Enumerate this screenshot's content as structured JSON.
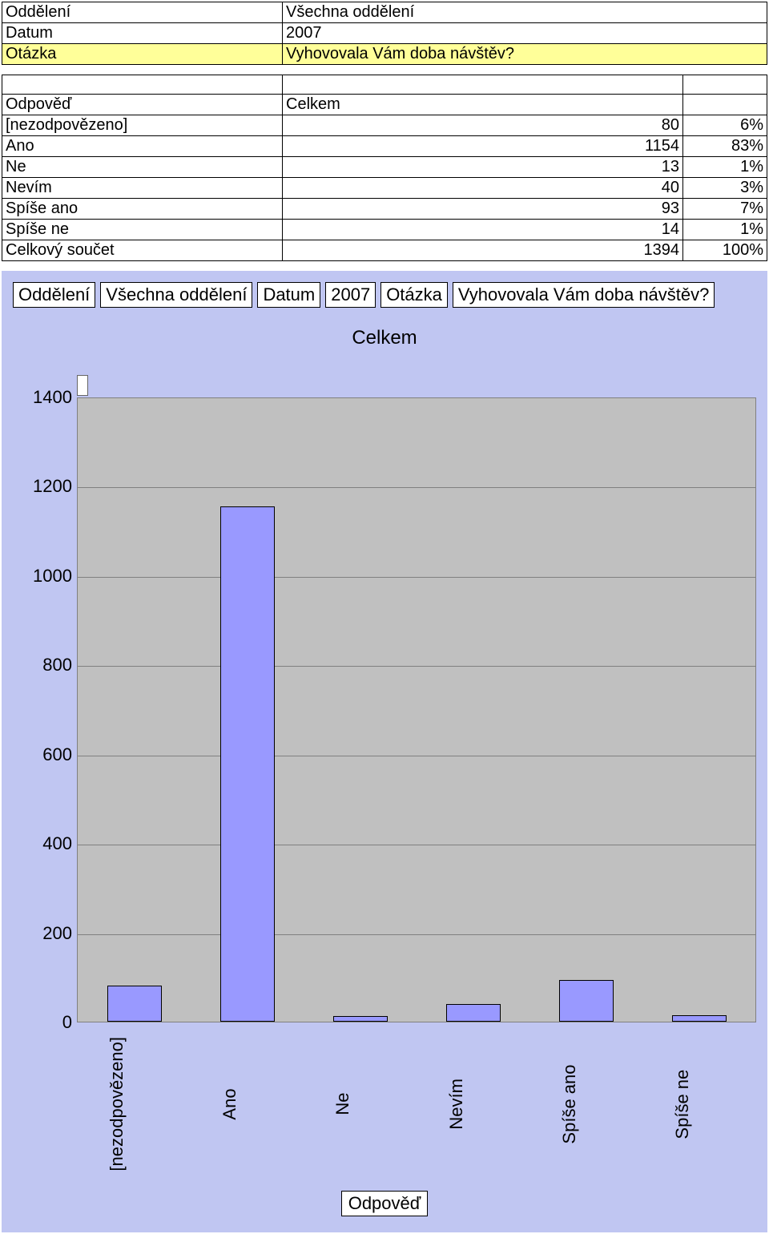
{
  "meta": {
    "rows": [
      {
        "label": "Oddělení",
        "value": "Všechna oddělení",
        "highlight": false
      },
      {
        "label": "Datum",
        "value": "2007",
        "highlight": false
      },
      {
        "label": "Otázka",
        "value": "Vyhovovala Vám doba návštěv?",
        "highlight": true
      }
    ]
  },
  "dataTable": {
    "headerLeft": "Odpověď",
    "headerMid": "Celkem",
    "rows": [
      {
        "label": "[nezodpovězeno]",
        "count": "80",
        "pct": "6%"
      },
      {
        "label": "Ano",
        "count": "1154",
        "pct": "83%"
      },
      {
        "label": "Ne",
        "count": "13",
        "pct": "1%"
      },
      {
        "label": "Nevím",
        "count": "40",
        "pct": "3%"
      },
      {
        "label": "Spíše ano",
        "count": "93",
        "pct": "7%"
      },
      {
        "label": "Spíše ne",
        "count": "14",
        "pct": "1%"
      }
    ],
    "totalLabel": "Celkový součet",
    "totalCount": "1394",
    "totalPct": "100%"
  },
  "chart": {
    "type": "bar",
    "filters": {
      "f1Label": "Oddělení",
      "f1Value": "Všechna oddělení",
      "f2Label": "Datum",
      "f2Value": "2007",
      "f3Label": "Otázka",
      "f3Value": "Vyhovovala Vám doba návštěv?"
    },
    "title": "Celkem",
    "categories": [
      "[nezodpovězeno]",
      "Ano",
      "Ne",
      "Nevím",
      "Spíše ano",
      "Spíše ne"
    ],
    "values": [
      80,
      1154,
      13,
      40,
      93,
      14
    ],
    "bar_color": "#9999ff",
    "bar_border": "#000000",
    "background_color": "#c0c6f2",
    "plot_background": "#c0c0c0",
    "grid_color": "#808080",
    "ylim_max": 1400,
    "ytick_step": 200,
    "yticks": [
      "0",
      "200",
      "400",
      "600",
      "800",
      "1000",
      "1200",
      "1400"
    ],
    "axis_title": "Odpověď",
    "label_fontsize": 22,
    "title_fontsize": 24
  }
}
